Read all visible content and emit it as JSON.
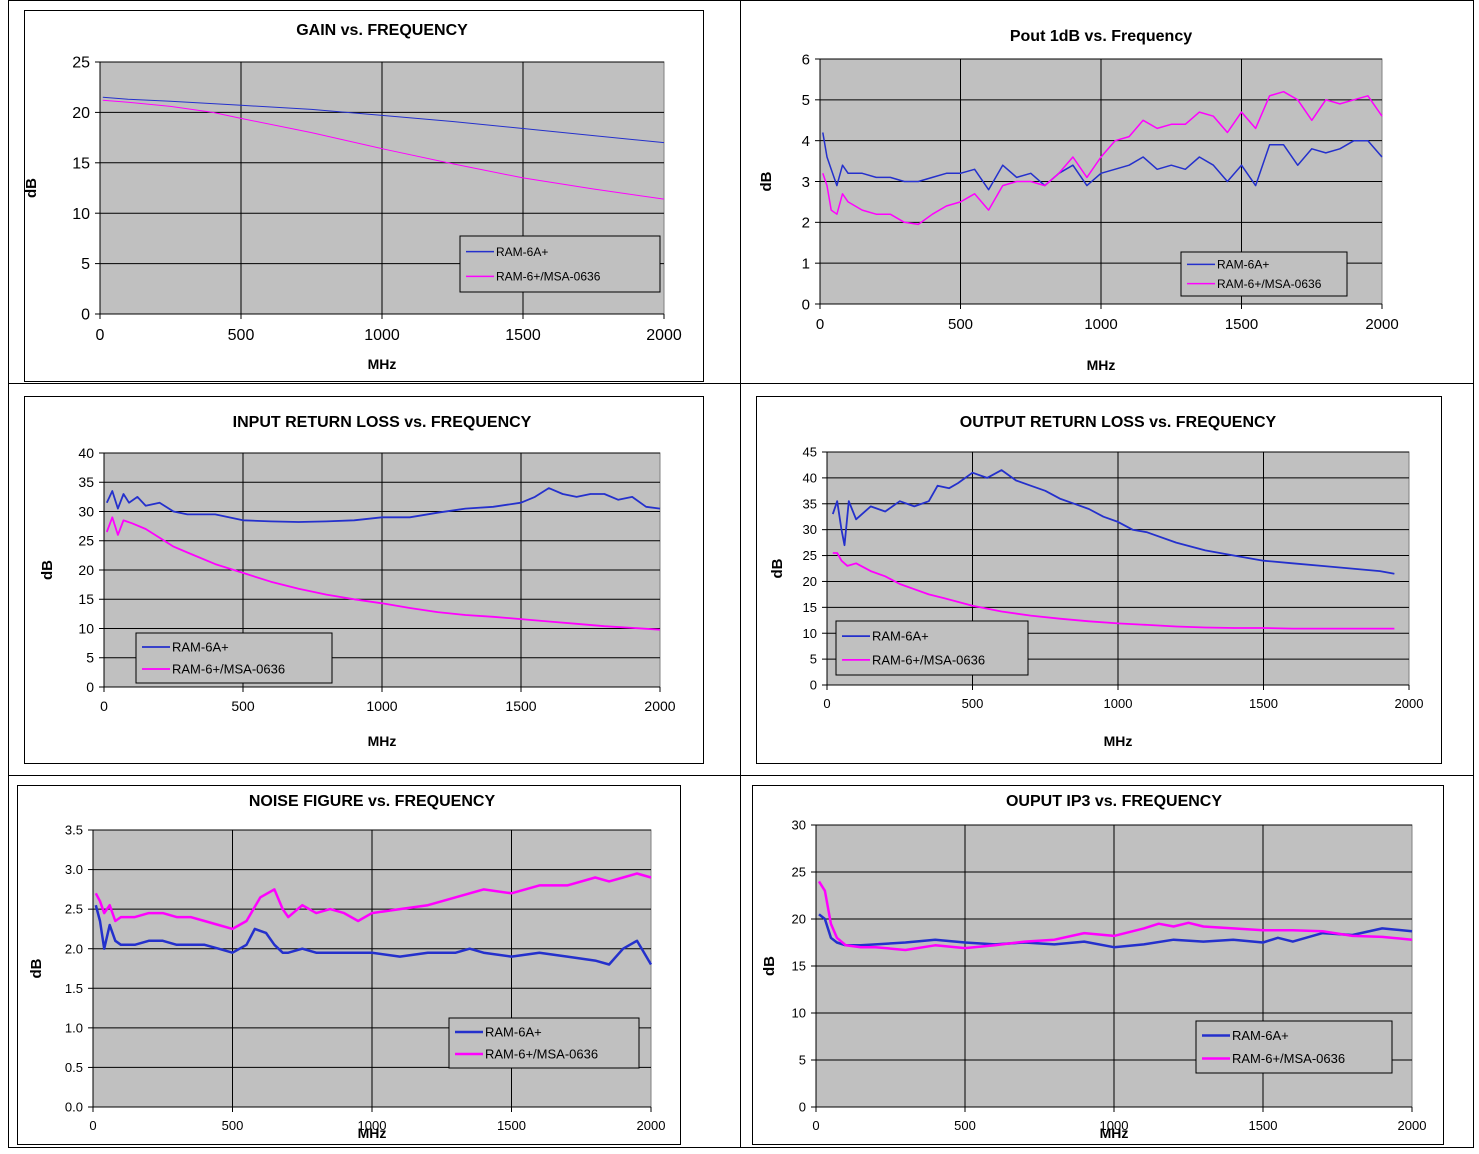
{
  "colors": {
    "ram6a": "#2430cc",
    "ram6": "#ff00ff",
    "plot_bg": "#c0c0c0",
    "grid": "#000000"
  },
  "legend_labels": {
    "ram6a": "RAM-6A+",
    "ram6": "RAM-6+/MSA-0636"
  },
  "chart_data": [
    {
      "type": "line",
      "title": "GAIN vs. FREQUENCY",
      "xlabel": "MHz",
      "ylabel": "dB",
      "xlim": [
        0,
        2000
      ],
      "ylim": [
        0,
        25
      ],
      "x_ticks": [
        "0",
        "500",
        "1000",
        "1500",
        "2000"
      ],
      "y_ticks": [
        "0",
        "5",
        "10",
        "15",
        "20",
        "25"
      ],
      "grid": true,
      "legend_position": "bottom-right",
      "series": [
        {
          "name": "RAM-6A+",
          "x": [
            10,
            100,
            250,
            500,
            750,
            1000,
            1250,
            1500,
            1750,
            2000
          ],
          "y": [
            21.5,
            21.3,
            21.1,
            20.7,
            20.3,
            19.7,
            19.1,
            18.4,
            17.7,
            17.0
          ]
        },
        {
          "name": "RAM-6+/MSA-0636",
          "x": [
            10,
            100,
            250,
            400,
            500,
            750,
            1000,
            1250,
            1500,
            1750,
            2000
          ],
          "y": [
            21.2,
            21.0,
            20.6,
            20.0,
            19.4,
            18.0,
            16.4,
            14.9,
            13.5,
            12.4,
            11.4
          ]
        }
      ]
    },
    {
      "type": "line",
      "title": "Pout 1dB   vs. Frequency",
      "xlabel": "MHz",
      "ylabel": "dB",
      "xlim": [
        0,
        2000
      ],
      "ylim": [
        0,
        6
      ],
      "x_ticks": [
        "0",
        "500",
        "1000",
        "1500",
        "2000"
      ],
      "y_ticks": [
        "0",
        "1",
        "2",
        "3",
        "4",
        "5",
        "6"
      ],
      "grid": true,
      "legend_position": "bottom-right",
      "series": [
        {
          "name": "RAM-6A+",
          "x": [
            10,
            25,
            40,
            60,
            80,
            100,
            150,
            200,
            250,
            300,
            350,
            400,
            450,
            500,
            550,
            600,
            650,
            700,
            750,
            800,
            850,
            900,
            950,
            1000,
            1100,
            1150,
            1200,
            1250,
            1300,
            1350,
            1400,
            1450,
            1500,
            1550,
            1600,
            1650,
            1700,
            1750,
            1800,
            1850,
            1900,
            1950,
            2000
          ],
          "y": [
            4.2,
            3.6,
            3.3,
            2.9,
            3.4,
            3.2,
            3.2,
            3.1,
            3.1,
            3.0,
            3.0,
            3.1,
            3.2,
            3.2,
            3.3,
            2.8,
            3.4,
            3.1,
            3.2,
            2.9,
            3.2,
            3.4,
            2.9,
            3.2,
            3.4,
            3.6,
            3.3,
            3.4,
            3.3,
            3.6,
            3.4,
            3.0,
            3.4,
            2.9,
            3.9,
            3.9,
            3.4,
            3.8,
            3.7,
            3.8,
            4.0,
            4.0,
            3.6
          ]
        },
        {
          "name": "RAM-6+/MSA-0636",
          "x": [
            10,
            25,
            40,
            60,
            80,
            100,
            150,
            200,
            250,
            300,
            350,
            400,
            450,
            500,
            550,
            600,
            650,
            700,
            750,
            800,
            850,
            900,
            950,
            1000,
            1050,
            1100,
            1150,
            1200,
            1250,
            1300,
            1350,
            1400,
            1450,
            1500,
            1550,
            1600,
            1650,
            1700,
            1750,
            1800,
            1850,
            1900,
            1950,
            2000
          ],
          "y": [
            3.2,
            2.9,
            2.3,
            2.2,
            2.7,
            2.5,
            2.3,
            2.2,
            2.2,
            2.0,
            1.95,
            2.2,
            2.4,
            2.5,
            2.7,
            2.3,
            2.9,
            3.0,
            3.0,
            2.9,
            3.2,
            3.6,
            3.1,
            3.6,
            4.0,
            4.1,
            4.5,
            4.3,
            4.4,
            4.4,
            4.7,
            4.6,
            4.2,
            4.7,
            4.3,
            5.1,
            5.2,
            5.0,
            4.5,
            5.0,
            4.9,
            5.0,
            5.1,
            4.6
          ]
        }
      ]
    },
    {
      "type": "line",
      "title": "INPUT RETURN LOSS vs. FREQUENCY",
      "xlabel": "MHz",
      "ylabel": "dB",
      "xlim": [
        0,
        2000
      ],
      "ylim": [
        0,
        40
      ],
      "x_ticks": [
        "0",
        "500",
        "1000",
        "1500",
        "2000"
      ],
      "y_ticks": [
        "0",
        "5",
        "10",
        "15",
        "20",
        "25",
        "30",
        "35",
        "40"
      ],
      "grid": true,
      "legend_position": "bottom-left",
      "series": [
        {
          "name": "RAM-6A+",
          "x": [
            10,
            30,
            50,
            70,
            90,
            120,
            150,
            200,
            250,
            300,
            400,
            500,
            600,
            700,
            800,
            900,
            1000,
            1100,
            1200,
            1300,
            1400,
            1500,
            1550,
            1600,
            1650,
            1700,
            1750,
            1800,
            1850,
            1900,
            1950,
            2000
          ],
          "y": [
            31.5,
            33.5,
            30.5,
            33.0,
            31.5,
            32.5,
            31.0,
            31.5,
            30.0,
            29.5,
            29.5,
            28.5,
            28.3,
            28.2,
            28.3,
            28.5,
            29.0,
            29.0,
            29.8,
            30.5,
            30.8,
            31.5,
            32.5,
            34.0,
            33.0,
            32.5,
            33.0,
            33.0,
            32.0,
            32.5,
            30.8,
            30.5
          ]
        },
        {
          "name": "RAM-6+/MSA-0636",
          "x": [
            10,
            30,
            50,
            70,
            100,
            150,
            200,
            250,
            300,
            400,
            500,
            600,
            700,
            800,
            900,
            1000,
            1100,
            1200,
            1300,
            1400,
            1500,
            1600,
            1700,
            1800,
            1900,
            2000
          ],
          "y": [
            26.5,
            29.0,
            26.0,
            28.5,
            28.0,
            27.0,
            25.5,
            24.0,
            23.0,
            21.0,
            19.5,
            18.0,
            16.8,
            15.8,
            15.0,
            14.3,
            13.5,
            12.8,
            12.3,
            12.0,
            11.6,
            11.2,
            10.8,
            10.4,
            10.1,
            9.8
          ]
        }
      ]
    },
    {
      "type": "line",
      "title": "OUTPUT RETURN LOSS vs. FREQUENCY",
      "xlabel": "MHz",
      "ylabel": "dB",
      "xlim": [
        0,
        2000
      ],
      "ylim": [
        0,
        45
      ],
      "x_ticks": [
        "0",
        "500",
        "1000",
        "1500",
        "2000"
      ],
      "y_ticks": [
        "0",
        "5",
        "10",
        "15",
        "20",
        "25",
        "30",
        "35",
        "40",
        "45"
      ],
      "grid": true,
      "legend_position": "bottom-left",
      "series": [
        {
          "name": "RAM-6A+",
          "x": [
            20,
            35,
            50,
            60,
            75,
            100,
            150,
            200,
            250,
            300,
            350,
            380,
            420,
            450,
            500,
            550,
            600,
            650,
            700,
            750,
            800,
            850,
            900,
            950,
            1000,
            1050,
            1100,
            1200,
            1300,
            1400,
            1500,
            1600,
            1700,
            1800,
            1900,
            1950
          ],
          "y": [
            33.0,
            35.5,
            30.0,
            27.0,
            35.5,
            32.0,
            34.5,
            33.5,
            35.5,
            34.5,
            35.5,
            38.5,
            38.0,
            39.0,
            41.0,
            40.0,
            41.5,
            39.5,
            38.5,
            37.5,
            36.0,
            35.0,
            34.0,
            32.5,
            31.5,
            30.0,
            29.5,
            27.5,
            26.0,
            25.0,
            24.0,
            23.5,
            23.0,
            22.5,
            22.0,
            21.5
          ]
        },
        {
          "name": "RAM-6+/MSA-0636",
          "x": [
            20,
            35,
            50,
            70,
            100,
            150,
            200,
            250,
            300,
            350,
            400,
            500,
            600,
            700,
            800,
            900,
            1000,
            1100,
            1200,
            1300,
            1400,
            1500,
            1600,
            1700,
            1800,
            1900,
            1950
          ],
          "y": [
            25.5,
            25.5,
            24.0,
            23.0,
            23.5,
            22.0,
            21.0,
            19.5,
            18.5,
            17.5,
            16.8,
            15.3,
            14.2,
            13.4,
            12.8,
            12.3,
            11.9,
            11.6,
            11.3,
            11.1,
            11.0,
            11.0,
            10.9,
            10.9,
            10.9,
            10.9,
            10.9
          ]
        }
      ]
    },
    {
      "type": "line",
      "title": "NOISE FIGURE vs. FREQUENCY",
      "xlabel": "MHz",
      "ylabel": "dB",
      "xlim": [
        0,
        2000
      ],
      "ylim": [
        0,
        3.5
      ],
      "x_ticks": [
        "0",
        "500",
        "1000",
        "1500",
        "2000"
      ],
      "y_ticks": [
        "0.0",
        "0.5",
        "1.0",
        "1.5",
        "2.0",
        "2.5",
        "3.0",
        "3.5"
      ],
      "grid": true,
      "legend_position": "bottom-right",
      "series": [
        {
          "name": "RAM-6A+",
          "x": [
            10,
            25,
            40,
            60,
            80,
            100,
            150,
            200,
            250,
            300,
            350,
            400,
            450,
            500,
            550,
            580,
            620,
            650,
            680,
            700,
            750,
            800,
            900,
            1000,
            1100,
            1200,
            1300,
            1350,
            1400,
            1500,
            1600,
            1700,
            1800,
            1850,
            1900,
            1950,
            2000
          ],
          "y": [
            2.55,
            2.35,
            2.0,
            2.3,
            2.1,
            2.05,
            2.05,
            2.1,
            2.1,
            2.05,
            2.05,
            2.05,
            2.0,
            1.95,
            2.05,
            2.25,
            2.2,
            2.05,
            1.95,
            1.95,
            2.0,
            1.95,
            1.95,
            1.95,
            1.9,
            1.95,
            1.95,
            2.0,
            1.95,
            1.9,
            1.95,
            1.9,
            1.85,
            1.8,
            2.0,
            2.1,
            1.8
          ]
        },
        {
          "name": "RAM-6+/MSA-0636",
          "x": [
            10,
            25,
            40,
            60,
            80,
            100,
            150,
            200,
            250,
            300,
            350,
            400,
            450,
            500,
            550,
            600,
            650,
            680,
            700,
            750,
            800,
            850,
            900,
            950,
            1000,
            1100,
            1200,
            1300,
            1400,
            1500,
            1600,
            1700,
            1800,
            1850,
            1900,
            1950,
            2000
          ],
          "y": [
            2.7,
            2.6,
            2.45,
            2.55,
            2.35,
            2.4,
            2.4,
            2.45,
            2.45,
            2.4,
            2.4,
            2.35,
            2.3,
            2.25,
            2.35,
            2.65,
            2.75,
            2.5,
            2.4,
            2.55,
            2.45,
            2.5,
            2.45,
            2.35,
            2.45,
            2.5,
            2.55,
            2.65,
            2.75,
            2.7,
            2.8,
            2.8,
            2.9,
            2.85,
            2.9,
            2.95,
            2.9
          ]
        }
      ]
    },
    {
      "type": "line",
      "title": "OUPUT IP3 vs. FREQUENCY",
      "xlabel": "MHz",
      "ylabel": "dB",
      "xlim": [
        0,
        2000
      ],
      "ylim": [
        0,
        30
      ],
      "x_ticks": [
        "0",
        "500",
        "1000",
        "1500",
        "2000"
      ],
      "y_ticks": [
        "0",
        "5",
        "10",
        "15",
        "20",
        "25",
        "30"
      ],
      "grid": true,
      "legend_position": "bottom-right",
      "series": [
        {
          "name": "RAM-6A+",
          "x": [
            10,
            30,
            50,
            70,
            100,
            150,
            200,
            300,
            400,
            500,
            600,
            700,
            800,
            900,
            1000,
            1100,
            1200,
            1300,
            1400,
            1500,
            1550,
            1600,
            1700,
            1800,
            1900,
            2000
          ],
          "y": [
            20.5,
            20.0,
            18.0,
            17.5,
            17.2,
            17.2,
            17.3,
            17.5,
            17.8,
            17.5,
            17.3,
            17.5,
            17.3,
            17.6,
            17.0,
            17.3,
            17.8,
            17.6,
            17.8,
            17.5,
            18.0,
            17.6,
            18.5,
            18.3,
            19.0,
            18.7
          ]
        },
        {
          "name": "RAM-6+/MSA-0636",
          "x": [
            10,
            30,
            50,
            70,
            100,
            150,
            200,
            300,
            400,
            500,
            600,
            700,
            800,
            900,
            1000,
            1100,
            1150,
            1200,
            1250,
            1300,
            1400,
            1500,
            1600,
            1700,
            1800,
            1900,
            2000
          ],
          "y": [
            24.0,
            23.0,
            19.5,
            18.0,
            17.2,
            17.0,
            17.0,
            16.7,
            17.2,
            16.9,
            17.2,
            17.6,
            17.8,
            18.5,
            18.2,
            19.0,
            19.5,
            19.2,
            19.6,
            19.2,
            19.0,
            18.8,
            18.8,
            18.7,
            18.2,
            18.1,
            17.8
          ]
        }
      ]
    }
  ]
}
